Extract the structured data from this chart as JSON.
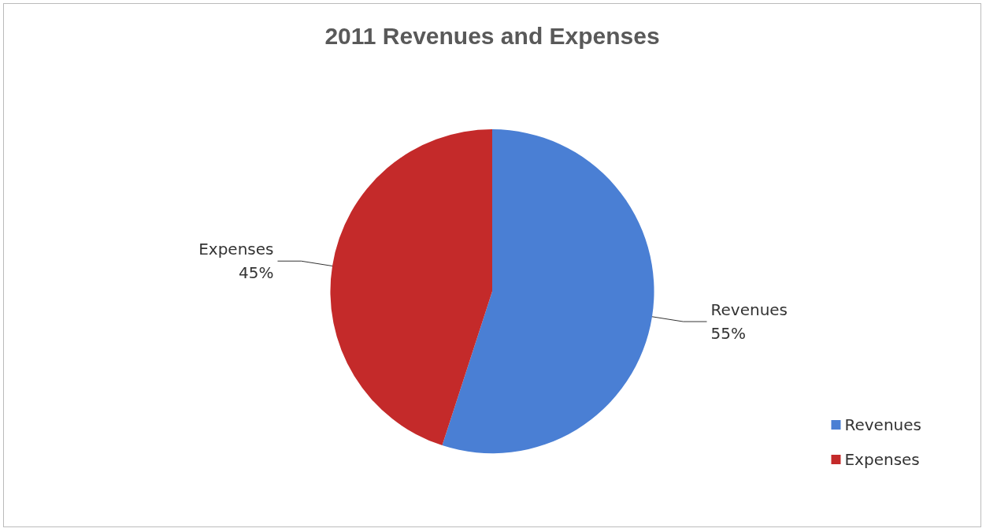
{
  "chart_data": {
    "type": "pie",
    "title": "2011 Revenues and Expenses",
    "categories": [
      "Revenues",
      "Expenses"
    ],
    "values": [
      55,
      45
    ],
    "colors": [
      "#4a7fd4",
      "#c42a2a"
    ],
    "value_labels": [
      "55%",
      "45%"
    ],
    "legend": "bottom right"
  }
}
